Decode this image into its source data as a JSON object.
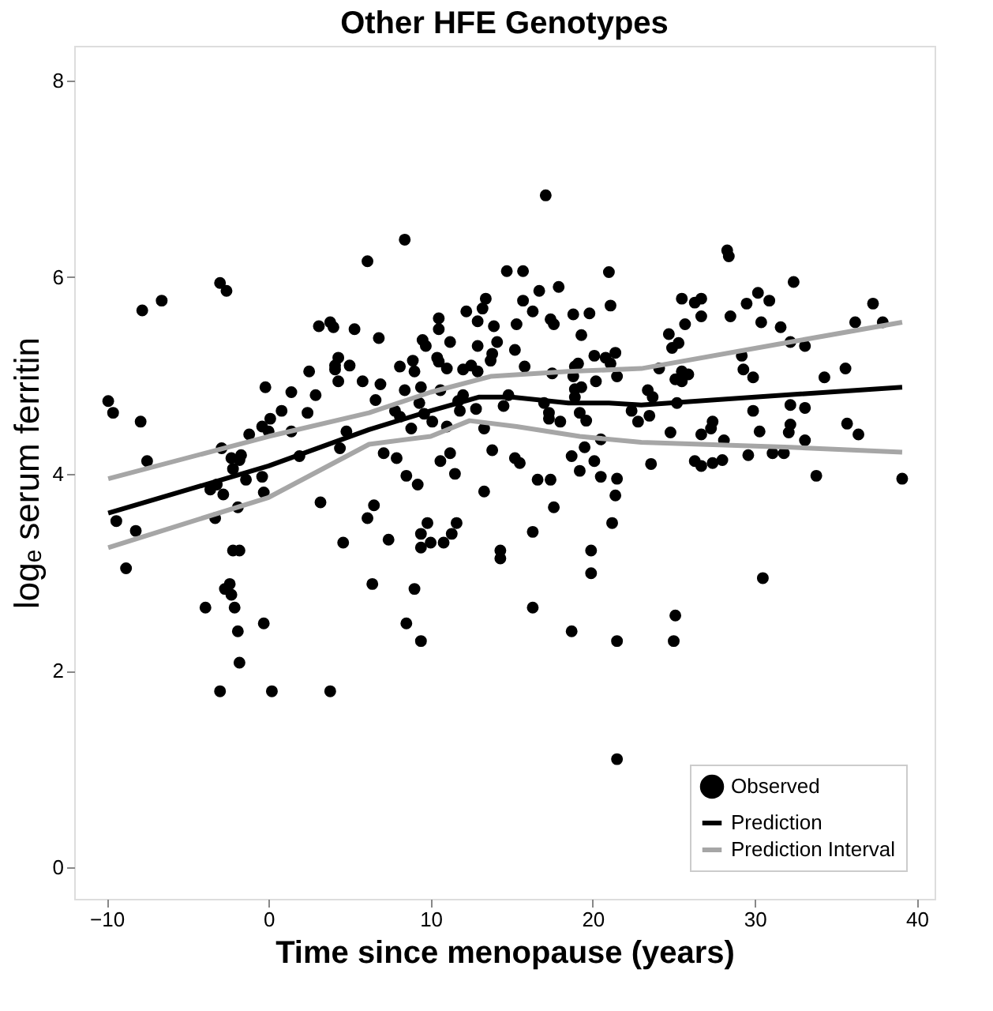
{
  "chart_data": {
    "type": "scatter",
    "title": "Other HFE Genotypes",
    "xlabel": "Time since menopause (years)",
    "ylabel": "logₑ serum ferritin",
    "xlim": [
      -12,
      41.1
    ],
    "ylim": [
      -0.32,
      8.35
    ],
    "xticks": [
      -10,
      0,
      10,
      20,
      30,
      40
    ],
    "yticks": [
      0,
      2,
      4,
      6,
      8
    ],
    "grid": false,
    "legend": "bottom right",
    "series": [
      {
        "name": "Observed",
        "marker": "circle",
        "color": "#000000",
        "x": [
          -9.9,
          -9.6,
          -7.9,
          -7.8,
          -6.6,
          -7.5,
          -9.4,
          -8.2,
          -8.8,
          -3.0,
          -2.6,
          -2.9,
          -2.3,
          -1.8,
          -1.7,
          -2.2,
          -3.6,
          -3.2,
          -2.8,
          -1.4,
          -0.4,
          -0.3,
          -1.9,
          -3.3,
          -2.2,
          -1.8,
          -2.4,
          -2.7,
          -2.3,
          -3.9,
          -2.1,
          -0.3,
          -1.9,
          -1.8,
          -3.0,
          0.2,
          3.8,
          -1.2,
          -0.2,
          -0.4,
          0.1,
          0.0,
          0.8,
          1.4,
          1.4,
          1.9,
          2.4,
          2.5,
          2.9,
          3.1,
          3.8,
          4.0,
          5.3,
          4.3,
          4.1,
          4.1,
          5.0,
          4.3,
          5.8,
          4.8,
          4.4,
          3.2,
          4.6,
          6.1,
          6.1,
          8.4,
          17.1,
          14.7,
          15.7,
          6.8,
          6.9,
          6.6,
          8.1,
          8.9,
          9.0,
          8.4,
          9.4,
          7.8,
          8.1,
          9.3,
          8.8,
          9.6,
          10.1,
          9.5,
          9.7,
          10.5,
          10.5,
          11.2,
          10.4,
          10.5,
          11.0,
          10.6,
          11.7,
          12.0,
          11.8,
          11.0,
          12.2,
          13.2,
          13.4,
          12.9,
          13.9,
          14.1,
          12.9,
          13.8,
          13.7,
          12.0,
          12.5,
          12.9,
          12.8,
          13.3,
          14.5,
          14.8,
          15.3,
          15.2,
          15.8,
          15.7,
          16.3,
          16.7,
          17.9,
          17.4,
          17.6,
          17.5,
          17.0,
          17.3,
          17.3,
          18.0,
          18.8,
          19.8,
          19.3,
          18.9,
          19.1,
          18.8,
          18.9,
          19.3,
          18.9,
          19.2,
          19.6,
          20.1,
          20.2,
          20.8,
          21.1,
          21.4,
          21.5,
          21.0,
          21.1,
          22.4,
          22.8,
          20.5,
          19.5,
          18.7,
          19.2,
          20.1,
          20.5,
          21.5,
          21.4,
          21.2,
          19.9,
          19.9,
          18.7,
          21.5,
          21.5,
          16.3,
          16.3,
          17.6,
          16.6,
          17.4,
          13.8,
          15.2,
          15.5,
          13.3,
          14.3,
          14.3,
          11.5,
          10.6,
          11.2,
          8.5,
          9.2,
          7.1,
          7.9,
          6.5,
          7.4,
          9.4,
          9.8,
          10.0,
          10.8,
          11.3,
          11.6,
          9.4,
          6.4,
          9.0,
          8.5,
          9.4,
          28.3,
          28.4,
          32.4,
          25.5,
          26.3,
          26.7,
          26.7,
          25.7,
          24.7,
          24.9,
          25.3,
          28.5,
          29.5,
          30.2,
          30.9,
          30.4,
          31.6,
          32.2,
          33.1,
          36.2,
          37.3,
          37.9,
          29.2,
          29.3,
          29.9,
          34.3,
          35.6,
          24.1,
          25.5,
          25.9,
          25.1,
          25.5,
          23.4,
          23.7,
          25.2,
          23.5,
          24.8,
          26.7,
          27.3,
          27.4,
          28.1,
          29.9,
          30.3,
          32.2,
          33.1,
          32.2,
          32.1,
          33.1,
          35.7,
          36.4,
          23.6,
          26.3,
          26.7,
          27.4,
          28.0,
          29.6,
          31.1,
          31.8,
          33.8,
          39.1,
          30.5,
          25.1,
          25.0
        ],
        "values": [
          4.74,
          4.62,
          4.53,
          5.66,
          5.76,
          4.13,
          3.52,
          3.42,
          3.04,
          5.94,
          5.86,
          4.26,
          4.16,
          4.14,
          4.19,
          4.05,
          3.84,
          3.89,
          3.79,
          3.94,
          3.97,
          3.81,
          3.66,
          3.55,
          3.22,
          3.22,
          2.88,
          2.83,
          2.77,
          2.64,
          2.64,
          2.48,
          2.4,
          2.08,
          1.79,
          1.79,
          1.79,
          4.4,
          4.88,
          4.48,
          4.56,
          4.43,
          4.64,
          4.83,
          4.43,
          4.18,
          4.62,
          5.04,
          4.8,
          5.5,
          5.54,
          5.49,
          5.47,
          5.18,
          5.1,
          5.06,
          5.1,
          4.94,
          4.94,
          4.43,
          4.26,
          3.71,
          3.3,
          6.16,
          3.55,
          6.38,
          6.83,
          6.06,
          6.06,
          5.38,
          4.91,
          4.75,
          5.09,
          5.15,
          5.04,
          4.85,
          4.88,
          4.64,
          4.58,
          4.72,
          4.46,
          4.61,
          4.53,
          5.36,
          5.3,
          5.58,
          5.47,
          5.34,
          5.18,
          5.14,
          5.07,
          4.85,
          4.74,
          4.8,
          4.64,
          4.48,
          5.65,
          5.68,
          5.78,
          5.55,
          5.5,
          5.34,
          5.3,
          5.22,
          5.15,
          5.06,
          5.1,
          5.04,
          4.66,
          4.46,
          4.69,
          4.8,
          5.52,
          5.26,
          5.09,
          5.76,
          5.65,
          5.86,
          5.9,
          5.57,
          5.52,
          5.02,
          4.72,
          4.62,
          4.56,
          4.53,
          5.62,
          5.63,
          5.41,
          5.09,
          5.12,
          4.99,
          4.86,
          4.88,
          4.78,
          4.62,
          4.54,
          5.2,
          4.94,
          5.18,
          5.12,
          5.23,
          4.99,
          6.05,
          5.71,
          4.64,
          4.53,
          4.35,
          4.27,
          4.18,
          4.03,
          4.13,
          3.97,
          3.95,
          3.78,
          3.5,
          3.22,
          2.99,
          2.4,
          2.3,
          1.1,
          2.64,
          3.41,
          3.66,
          3.94,
          3.94,
          4.24,
          4.16,
          4.11,
          3.82,
          3.22,
          3.14,
          4.0,
          4.13,
          4.21,
          3.98,
          3.89,
          4.21,
          4.16,
          3.68,
          3.33,
          3.39,
          3.5,
          3.3,
          3.3,
          3.39,
          3.5,
          3.25,
          2.88,
          2.83,
          2.48,
          2.3,
          6.27,
          6.21,
          5.95,
          5.78,
          5.74,
          5.78,
          5.6,
          5.52,
          5.42,
          5.28,
          5.33,
          5.6,
          5.73,
          5.84,
          5.76,
          5.54,
          5.49,
          5.34,
          5.3,
          5.54,
          5.73,
          5.54,
          5.2,
          5.06,
          4.98,
          4.98,
          5.07,
          5.07,
          5.04,
          5.01,
          4.96,
          4.94,
          4.85,
          4.78,
          4.72,
          4.59,
          4.42,
          4.4,
          4.46,
          4.53,
          4.34,
          4.64,
          4.43,
          4.7,
          4.67,
          4.5,
          4.42,
          4.34,
          4.51,
          4.4,
          4.1,
          4.13,
          4.08,
          4.11,
          4.14,
          4.19,
          4.21,
          4.21,
          3.98,
          3.95,
          2.94,
          2.56,
          2.3
        ]
      },
      {
        "name": "Prediction",
        "type": "line",
        "line_style": "solid",
        "color": "#000000",
        "x": [
          -9.9,
          0,
          6.2,
          10,
          13,
          15,
          18.5,
          21,
          23,
          30,
          39.1
        ],
        "values": [
          3.6,
          4.08,
          4.45,
          4.64,
          4.78,
          4.78,
          4.72,
          4.72,
          4.7,
          4.78,
          4.88
        ]
      },
      {
        "name": "Prediction Interval",
        "type": "line",
        "line_style": "solid",
        "color": "#a6a6a6",
        "x": [
          -9.9,
          0,
          6.2,
          10,
          13.7,
          18.5,
          23,
          32.2,
          39.1
        ],
        "values": [
          3.95,
          4.38,
          4.62,
          4.83,
          4.99,
          5.04,
          5.07,
          5.34,
          5.54
        ]
      },
      {
        "type": "line",
        "line_style": "solid",
        "color": "#a6a6a6",
        "x": [
          -9.9,
          0,
          6.2,
          10,
          12.4,
          15.3,
          19.2,
          23,
          32.2,
          39.1
        ],
        "values": [
          3.25,
          3.76,
          4.3,
          4.38,
          4.54,
          4.48,
          4.38,
          4.32,
          4.27,
          4.22
        ]
      }
    ]
  }
}
